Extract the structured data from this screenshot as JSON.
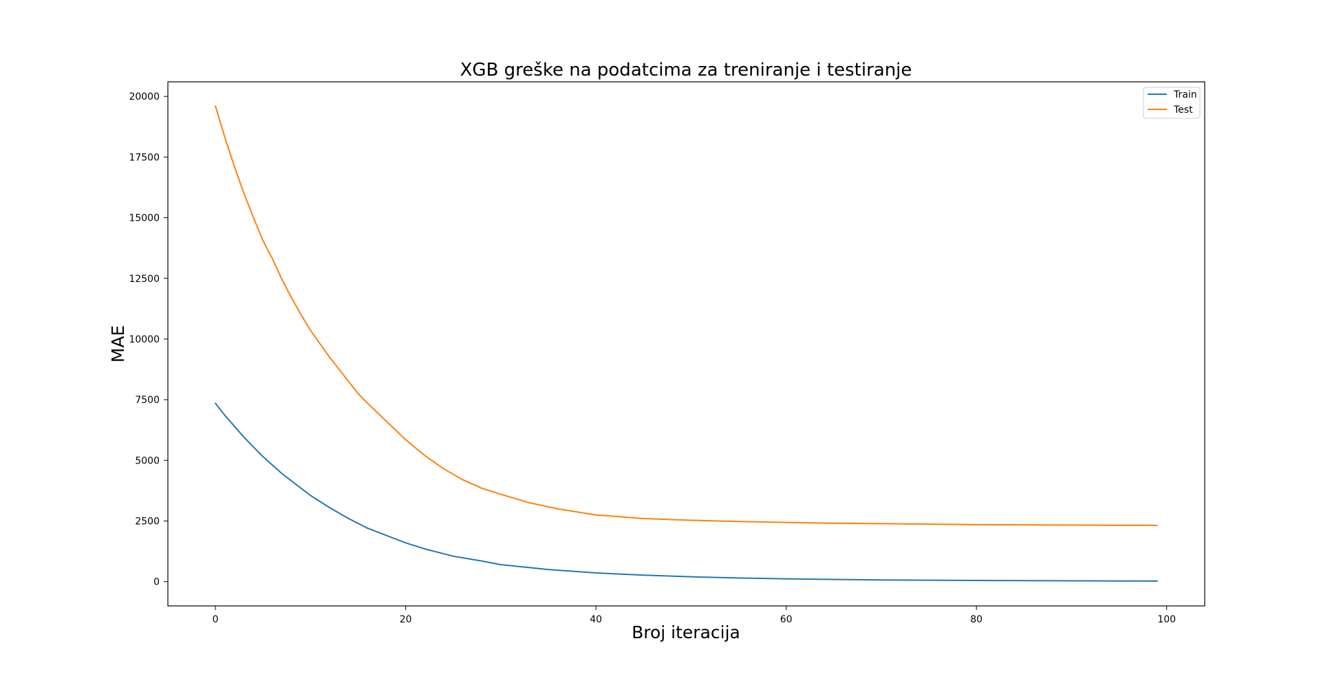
{
  "chart_data": {
    "type": "line",
    "title": "XGB greške na podatcima za treniranje i testiranje",
    "xlabel": "Broj iteracija",
    "ylabel": "MAE",
    "xlim": [
      -5,
      104
    ],
    "ylim": [
      -1000,
      20600
    ],
    "xticks": [
      0,
      20,
      40,
      60,
      80,
      100
    ],
    "yticks": [
      0,
      2500,
      5000,
      7500,
      10000,
      12500,
      15000,
      17500,
      20000
    ],
    "grid": false,
    "legend_position": "top-right",
    "series": [
      {
        "name": "Train",
        "color": "#1f77b4",
        "points": [
          [
            0,
            7350
          ],
          [
            1,
            6850
          ],
          [
            2,
            6400
          ],
          [
            3,
            5950
          ],
          [
            4,
            5550
          ],
          [
            5,
            5150
          ],
          [
            6,
            4800
          ],
          [
            7,
            4450
          ],
          [
            8,
            4150
          ],
          [
            9,
            3850
          ],
          [
            10,
            3550
          ],
          [
            12,
            3050
          ],
          [
            14,
            2600
          ],
          [
            16,
            2200
          ],
          [
            18,
            1900
          ],
          [
            20,
            1600
          ],
          [
            22,
            1350
          ],
          [
            25,
            1050
          ],
          [
            28,
            850
          ],
          [
            30,
            700
          ],
          [
            35,
            500
          ],
          [
            40,
            360
          ],
          [
            45,
            270
          ],
          [
            50,
            200
          ],
          [
            55,
            150
          ],
          [
            60,
            115
          ],
          [
            65,
            90
          ],
          [
            70,
            70
          ],
          [
            75,
            58
          ],
          [
            80,
            48
          ],
          [
            85,
            40
          ],
          [
            90,
            34
          ],
          [
            95,
            29
          ],
          [
            99,
            25
          ]
        ]
      },
      {
        "name": "Test",
        "color": "#ff7f0e",
        "points": [
          [
            0,
            19600
          ],
          [
            1,
            18300
          ],
          [
            2,
            17100
          ],
          [
            3,
            16000
          ],
          [
            4,
            15000
          ],
          [
            5,
            14050
          ],
          [
            6,
            13300
          ],
          [
            7,
            12450
          ],
          [
            8,
            11700
          ],
          [
            9,
            11000
          ],
          [
            10,
            10350
          ],
          [
            12,
            9250
          ],
          [
            14,
            8250
          ],
          [
            15,
            7750
          ],
          [
            16,
            7350
          ],
          [
            18,
            6600
          ],
          [
            20,
            5850
          ],
          [
            22,
            5200
          ],
          [
            24,
            4650
          ],
          [
            26,
            4200
          ],
          [
            28,
            3850
          ],
          [
            30,
            3600
          ],
          [
            33,
            3250
          ],
          [
            36,
            3000
          ],
          [
            40,
            2750
          ],
          [
            45,
            2600
          ],
          [
            50,
            2530
          ],
          [
            55,
            2480
          ],
          [
            60,
            2440
          ],
          [
            65,
            2410
          ],
          [
            70,
            2390
          ],
          [
            75,
            2370
          ],
          [
            80,
            2350
          ],
          [
            85,
            2340
          ],
          [
            90,
            2330
          ],
          [
            95,
            2325
          ],
          [
            99,
            2320
          ]
        ]
      }
    ]
  }
}
